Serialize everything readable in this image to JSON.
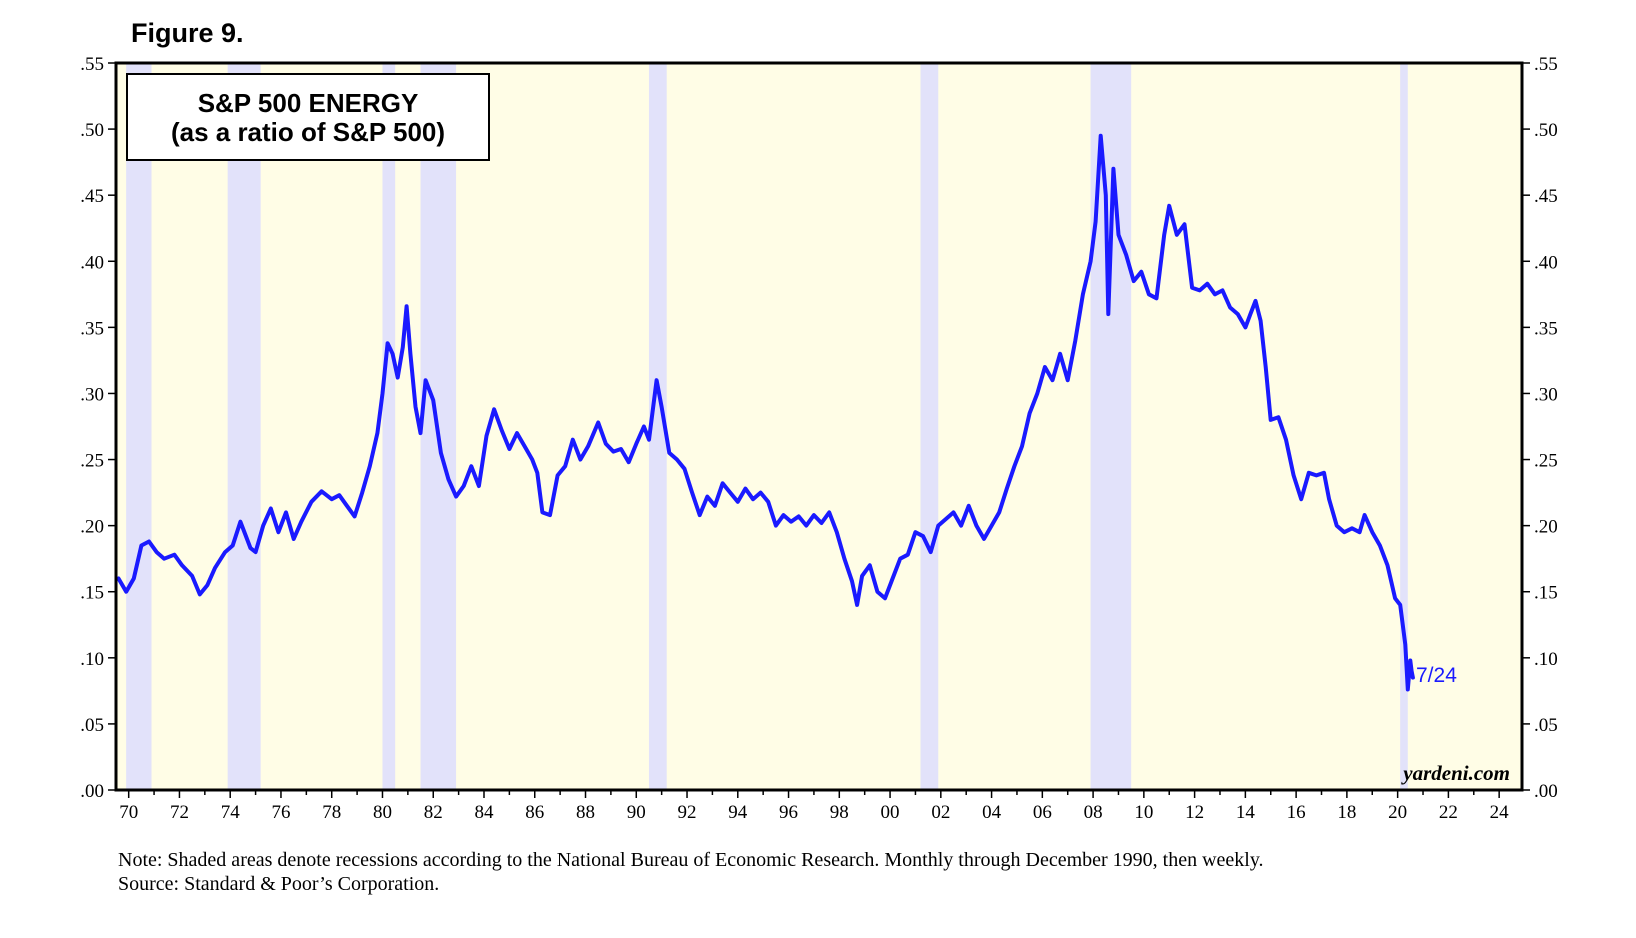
{
  "figure_label": "Figure 9.",
  "note": "Note: Shaded areas denote recessions according to the National Bureau of Economic Research. Monthly through December 1990, then weekly.",
  "source": "Source: Standard & Poor’s Corporation.",
  "colors": {
    "background": "#fffde6",
    "recession": "#e2e2fa",
    "line": "#1a1aff",
    "frame": "#000000"
  },
  "chart_data": {
    "type": "line",
    "title": "S&P 500 ENERGY",
    "subtitle": "(as a ratio of S&P 500)",
    "brand": "yardeni.com",
    "end_label": "7/24",
    "xlim": [
      1969.5,
      2024.9
    ],
    "ylim": [
      0.0,
      0.55
    ],
    "y_ticks": [
      0.0,
      0.05,
      0.1,
      0.15,
      0.2,
      0.25,
      0.3,
      0.35,
      0.4,
      0.45,
      0.5,
      0.55
    ],
    "y_tick_labels": [
      ".00",
      ".05",
      ".10",
      ".15",
      ".20",
      ".25",
      ".30",
      ".35",
      ".40",
      ".45",
      ".50",
      ".55"
    ],
    "x_tick_labels": [
      "70",
      "72",
      "74",
      "76",
      "78",
      "80",
      "82",
      "84",
      "86",
      "88",
      "90",
      "92",
      "94",
      "96",
      "98",
      "00",
      "02",
      "04",
      "06",
      "08",
      "10",
      "12",
      "14",
      "16",
      "18",
      "20",
      "22",
      "24"
    ],
    "x_tick_years": [
      1970,
      1972,
      1974,
      1976,
      1978,
      1980,
      1982,
      1984,
      1986,
      1988,
      1990,
      1992,
      1994,
      1996,
      1998,
      2000,
      2002,
      2004,
      2006,
      2008,
      2010,
      2012,
      2014,
      2016,
      2018,
      2020,
      2022,
      2024
    ],
    "recessions": [
      [
        1969.9,
        1970.9
      ],
      [
        1973.9,
        1975.2
      ],
      [
        1980.0,
        1980.5
      ],
      [
        1981.5,
        1982.9
      ],
      [
        1990.5,
        1991.2
      ],
      [
        2001.2,
        2001.9
      ],
      [
        2007.9,
        2009.5
      ],
      [
        2020.1,
        2020.4
      ]
    ],
    "series": [
      {
        "name": "S&P 500 Energy / S&P 500",
        "points": [
          [
            1969.6,
            0.16
          ],
          [
            1969.9,
            0.15
          ],
          [
            1970.2,
            0.16
          ],
          [
            1970.5,
            0.185
          ],
          [
            1970.8,
            0.188
          ],
          [
            1971.1,
            0.18
          ],
          [
            1971.4,
            0.175
          ],
          [
            1971.8,
            0.178
          ],
          [
            1972.1,
            0.17
          ],
          [
            1972.5,
            0.162
          ],
          [
            1972.8,
            0.148
          ],
          [
            1973.1,
            0.155
          ],
          [
            1973.4,
            0.168
          ],
          [
            1973.8,
            0.18
          ],
          [
            1974.1,
            0.185
          ],
          [
            1974.4,
            0.203
          ],
          [
            1974.8,
            0.183
          ],
          [
            1975.0,
            0.18
          ],
          [
            1975.3,
            0.2
          ],
          [
            1975.6,
            0.213
          ],
          [
            1975.9,
            0.195
          ],
          [
            1976.2,
            0.21
          ],
          [
            1976.5,
            0.19
          ],
          [
            1976.8,
            0.203
          ],
          [
            1977.2,
            0.218
          ],
          [
            1977.6,
            0.226
          ],
          [
            1978.0,
            0.22
          ],
          [
            1978.3,
            0.223
          ],
          [
            1978.6,
            0.215
          ],
          [
            1978.9,
            0.207
          ],
          [
            1979.2,
            0.225
          ],
          [
            1979.5,
            0.245
          ],
          [
            1979.8,
            0.27
          ],
          [
            1980.0,
            0.3
          ],
          [
            1980.2,
            0.338
          ],
          [
            1980.4,
            0.33
          ],
          [
            1980.6,
            0.312
          ],
          [
            1980.8,
            0.335
          ],
          [
            1980.95,
            0.366
          ],
          [
            1981.1,
            0.33
          ],
          [
            1981.3,
            0.29
          ],
          [
            1981.5,
            0.27
          ],
          [
            1981.7,
            0.31
          ],
          [
            1982.0,
            0.295
          ],
          [
            1982.3,
            0.255
          ],
          [
            1982.6,
            0.235
          ],
          [
            1982.9,
            0.222
          ],
          [
            1983.2,
            0.23
          ],
          [
            1983.5,
            0.245
          ],
          [
            1983.8,
            0.23
          ],
          [
            1984.1,
            0.268
          ],
          [
            1984.4,
            0.288
          ],
          [
            1984.7,
            0.272
          ],
          [
            1985.0,
            0.258
          ],
          [
            1985.3,
            0.27
          ],
          [
            1985.6,
            0.26
          ],
          [
            1985.9,
            0.25
          ],
          [
            1986.1,
            0.24
          ],
          [
            1986.3,
            0.21
          ],
          [
            1986.6,
            0.208
          ],
          [
            1986.9,
            0.238
          ],
          [
            1987.2,
            0.245
          ],
          [
            1987.5,
            0.265
          ],
          [
            1987.8,
            0.25
          ],
          [
            1988.1,
            0.26
          ],
          [
            1988.5,
            0.278
          ],
          [
            1988.8,
            0.262
          ],
          [
            1989.1,
            0.256
          ],
          [
            1989.4,
            0.258
          ],
          [
            1989.7,
            0.248
          ],
          [
            1990.0,
            0.262
          ],
          [
            1990.3,
            0.275
          ],
          [
            1990.5,
            0.265
          ],
          [
            1990.8,
            0.31
          ],
          [
            1991.0,
            0.29
          ],
          [
            1991.3,
            0.255
          ],
          [
            1991.6,
            0.25
          ],
          [
            1991.9,
            0.243
          ],
          [
            1992.2,
            0.225
          ],
          [
            1992.5,
            0.208
          ],
          [
            1992.8,
            0.222
          ],
          [
            1993.1,
            0.215
          ],
          [
            1993.4,
            0.232
          ],
          [
            1993.7,
            0.225
          ],
          [
            1994.0,
            0.218
          ],
          [
            1994.3,
            0.228
          ],
          [
            1994.6,
            0.22
          ],
          [
            1994.9,
            0.225
          ],
          [
            1995.2,
            0.218
          ],
          [
            1995.5,
            0.2
          ],
          [
            1995.8,
            0.208
          ],
          [
            1996.1,
            0.203
          ],
          [
            1996.4,
            0.207
          ],
          [
            1996.7,
            0.2
          ],
          [
            1997.0,
            0.208
          ],
          [
            1997.3,
            0.202
          ],
          [
            1997.6,
            0.21
          ],
          [
            1997.9,
            0.195
          ],
          [
            1998.2,
            0.175
          ],
          [
            1998.5,
            0.158
          ],
          [
            1998.7,
            0.14
          ],
          [
            1998.9,
            0.162
          ],
          [
            1999.2,
            0.17
          ],
          [
            1999.5,
            0.15
          ],
          [
            1999.8,
            0.145
          ],
          [
            2000.1,
            0.16
          ],
          [
            2000.4,
            0.175
          ],
          [
            2000.7,
            0.178
          ],
          [
            2001.0,
            0.195
          ],
          [
            2001.3,
            0.192
          ],
          [
            2001.6,
            0.18
          ],
          [
            2001.9,
            0.2
          ],
          [
            2002.2,
            0.205
          ],
          [
            2002.5,
            0.21
          ],
          [
            2002.8,
            0.2
          ],
          [
            2003.1,
            0.215
          ],
          [
            2003.4,
            0.2
          ],
          [
            2003.7,
            0.19
          ],
          [
            2004.0,
            0.2
          ],
          [
            2004.3,
            0.21
          ],
          [
            2004.6,
            0.228
          ],
          [
            2004.9,
            0.245
          ],
          [
            2005.2,
            0.26
          ],
          [
            2005.5,
            0.285
          ],
          [
            2005.8,
            0.3
          ],
          [
            2006.1,
            0.32
          ],
          [
            2006.4,
            0.31
          ],
          [
            2006.7,
            0.33
          ],
          [
            2007.0,
            0.31
          ],
          [
            2007.3,
            0.34
          ],
          [
            2007.6,
            0.375
          ],
          [
            2007.9,
            0.4
          ],
          [
            2008.1,
            0.43
          ],
          [
            2008.3,
            0.495
          ],
          [
            2008.5,
            0.45
          ],
          [
            2008.6,
            0.36
          ],
          [
            2008.8,
            0.47
          ],
          [
            2009.0,
            0.42
          ],
          [
            2009.3,
            0.405
          ],
          [
            2009.6,
            0.385
          ],
          [
            2009.9,
            0.392
          ],
          [
            2010.2,
            0.375
          ],
          [
            2010.5,
            0.372
          ],
          [
            2010.8,
            0.42
          ],
          [
            2011.0,
            0.442
          ],
          [
            2011.3,
            0.42
          ],
          [
            2011.6,
            0.428
          ],
          [
            2011.9,
            0.38
          ],
          [
            2012.2,
            0.378
          ],
          [
            2012.5,
            0.383
          ],
          [
            2012.8,
            0.375
          ],
          [
            2013.1,
            0.378
          ],
          [
            2013.4,
            0.365
          ],
          [
            2013.7,
            0.36
          ],
          [
            2014.0,
            0.35
          ],
          [
            2014.2,
            0.36
          ],
          [
            2014.4,
            0.37
          ],
          [
            2014.6,
            0.355
          ],
          [
            2014.8,
            0.32
          ],
          [
            2015.0,
            0.28
          ],
          [
            2015.3,
            0.282
          ],
          [
            2015.6,
            0.265
          ],
          [
            2015.9,
            0.238
          ],
          [
            2016.2,
            0.22
          ],
          [
            2016.5,
            0.24
          ],
          [
            2016.8,
            0.238
          ],
          [
            2017.1,
            0.24
          ],
          [
            2017.3,
            0.22
          ],
          [
            2017.6,
            0.2
          ],
          [
            2017.9,
            0.195
          ],
          [
            2018.2,
            0.198
          ],
          [
            2018.5,
            0.195
          ],
          [
            2018.7,
            0.208
          ],
          [
            2019.0,
            0.195
          ],
          [
            2019.3,
            0.185
          ],
          [
            2019.6,
            0.17
          ],
          [
            2019.9,
            0.145
          ],
          [
            2020.1,
            0.14
          ],
          [
            2020.3,
            0.11
          ],
          [
            2020.4,
            0.076
          ],
          [
            2020.5,
            0.098
          ],
          [
            2020.55,
            0.09
          ],
          [
            2020.6,
            0.085
          ]
        ]
      }
    ]
  }
}
